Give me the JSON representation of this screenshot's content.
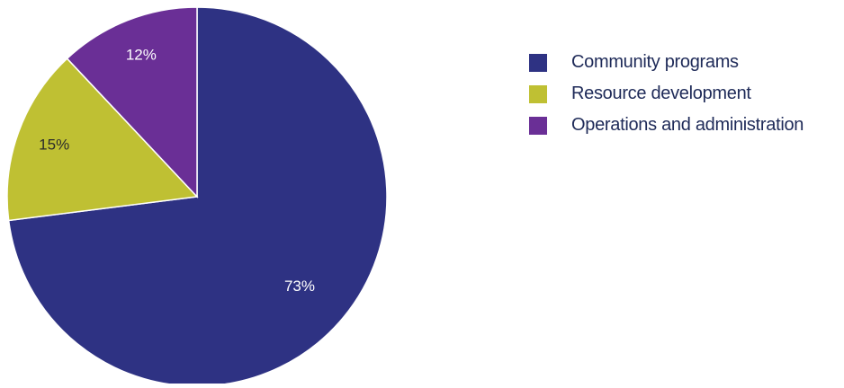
{
  "chart_data": {
    "type": "pie",
    "title": "",
    "categories": [
      "Community programs",
      "Resource development",
      "Operations and administration"
    ],
    "values": [
      73,
      15,
      12
    ],
    "data_labels": [
      "73%",
      "15%",
      "12%"
    ],
    "colors": [
      "#2e3283",
      "#bfc033",
      "#6a2f96"
    ],
    "legend": {
      "placement": "right",
      "entries": [
        "Community programs",
        "Resource development",
        "Operations and administration"
      ]
    }
  }
}
